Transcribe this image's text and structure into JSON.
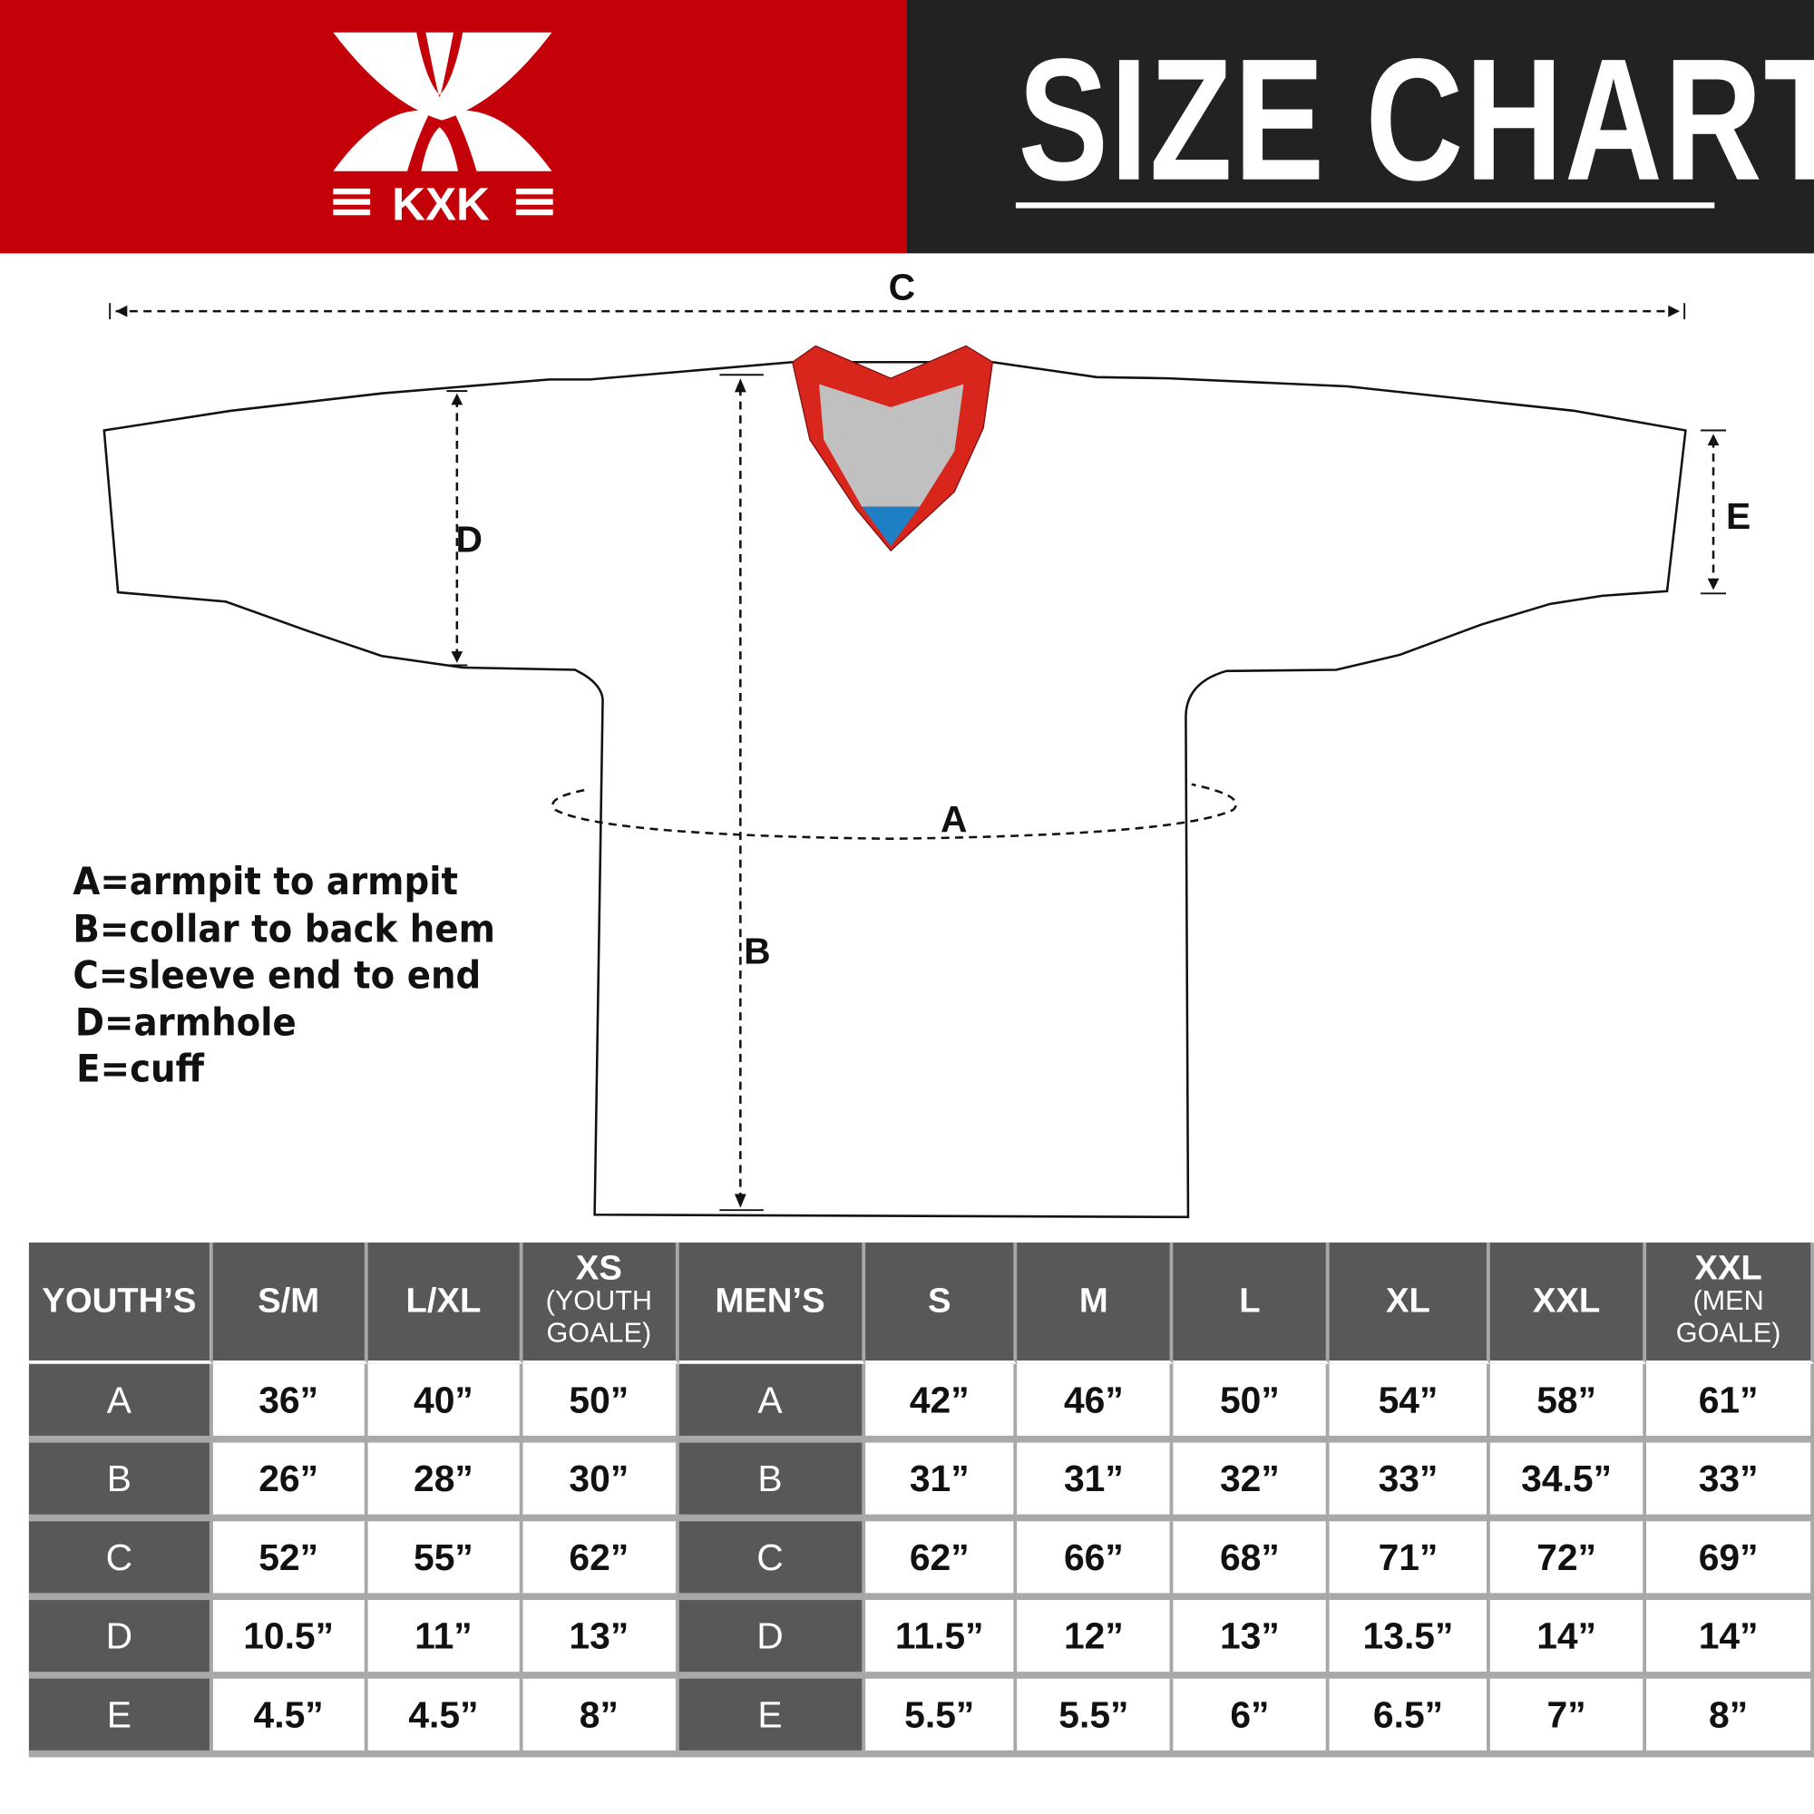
{
  "header": {
    "brand": "KXK",
    "title": "SIZE CHART",
    "colors": {
      "brand_red": "#c40008",
      "dark": "#222222"
    }
  },
  "diagram": {
    "labels": {
      "A": "A",
      "B": "B",
      "C": "C",
      "D": "D",
      "E": "E"
    },
    "legend": [
      "A=armpit to armpit",
      "B=collar to back hem",
      "C=sleeve end to end",
      "D=armhole",
      "E=cuff"
    ],
    "colors": {
      "collar": "#d9261c",
      "insert": "#c0c0c0",
      "tag": "#1f7fc4"
    }
  },
  "table": {
    "youth": {
      "header": "YOUTH’S",
      "columns": [
        {
          "label": "S/M",
          "sub": ""
        },
        {
          "label": "L/XL",
          "sub": ""
        },
        {
          "label": "XS",
          "sub": "(YOUTH GOALE)"
        }
      ],
      "rows": [
        {
          "key": "A",
          "values": [
            "36”",
            "40”",
            "50”"
          ]
        },
        {
          "key": "B",
          "values": [
            "26”",
            "28”",
            "30”"
          ]
        },
        {
          "key": "C",
          "values": [
            "52”",
            "55”",
            "62”"
          ]
        },
        {
          "key": "D",
          "values": [
            "10.5”",
            "11”",
            "13”"
          ]
        },
        {
          "key": "E",
          "values": [
            "4.5”",
            "4.5”",
            "8”"
          ]
        }
      ]
    },
    "men": {
      "header": "MEN’S",
      "columns": [
        {
          "label": "S",
          "sub": ""
        },
        {
          "label": "M",
          "sub": ""
        },
        {
          "label": "L",
          "sub": ""
        },
        {
          "label": "XL",
          "sub": ""
        },
        {
          "label": "XXL",
          "sub": ""
        },
        {
          "label": "XXL",
          "sub": "(MEN GOALE)"
        }
      ],
      "rows": [
        {
          "key": "A",
          "values": [
            "42”",
            "46”",
            "50”",
            "54”",
            "58”",
            "61”"
          ]
        },
        {
          "key": "B",
          "values": [
            "31”",
            "31”",
            "32”",
            "33”",
            "34.5”",
            "33”"
          ]
        },
        {
          "key": "C",
          "values": [
            "62”",
            "66”",
            "68”",
            "71”",
            "72”",
            "69”"
          ]
        },
        {
          "key": "D",
          "values": [
            "11.5”",
            "12”",
            "13”",
            "13.5”",
            "14”",
            "14”"
          ]
        },
        {
          "key": "E",
          "values": [
            "5.5”",
            "5.5”",
            "6”",
            "6.5”",
            "7”",
            "8”"
          ]
        }
      ]
    }
  }
}
